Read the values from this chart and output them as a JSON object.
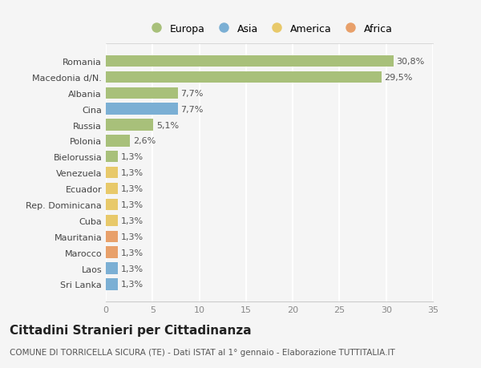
{
  "title": "Cittadini Stranieri per Cittadinanza",
  "subtitle": "COMUNE DI TORRICELLA SICURA (TE) - Dati ISTAT al 1° gennaio - Elaborazione TUTTITALIA.IT",
  "countries": [
    "Romania",
    "Macedonia d/N.",
    "Albania",
    "Cina",
    "Russia",
    "Polonia",
    "Bielorussia",
    "Venezuela",
    "Ecuador",
    "Rep. Dominicana",
    "Cuba",
    "Mauritania",
    "Marocco",
    "Laos",
    "Sri Lanka"
  ],
  "values": [
    30.8,
    29.5,
    7.7,
    7.7,
    5.1,
    2.6,
    1.3,
    1.3,
    1.3,
    1.3,
    1.3,
    1.3,
    1.3,
    1.3,
    1.3
  ],
  "labels": [
    "30,8%",
    "29,5%",
    "7,7%",
    "7,7%",
    "5,1%",
    "2,6%",
    "1,3%",
    "1,3%",
    "1,3%",
    "1,3%",
    "1,3%",
    "1,3%",
    "1,3%",
    "1,3%",
    "1,3%"
  ],
  "continents": [
    "Europa",
    "Europa",
    "Europa",
    "Asia",
    "Europa",
    "Europa",
    "Europa",
    "America",
    "America",
    "America",
    "America",
    "Africa",
    "Africa",
    "Asia",
    "Asia"
  ],
  "continent_colors": {
    "Europa": "#a8c07a",
    "Asia": "#7bafd4",
    "America": "#e8c96a",
    "Africa": "#e8a06a"
  },
  "legend_order": [
    "Europa",
    "Asia",
    "America",
    "Africa"
  ],
  "legend_colors": {
    "Europa": "#a8c07a",
    "Asia": "#7bafd4",
    "America": "#e8c96a",
    "Africa": "#e8a06a"
  },
  "xlim": [
    0,
    35
  ],
  "xticks": [
    0,
    5,
    10,
    15,
    20,
    25,
    30,
    35
  ],
  "background_color": "#f5f5f5",
  "plot_bg_color": "#f5f5f5",
  "grid_color": "#ffffff",
  "bar_height": 0.72,
  "label_fontsize": 8,
  "tick_fontsize": 8,
  "title_fontsize": 11,
  "subtitle_fontsize": 7.5
}
